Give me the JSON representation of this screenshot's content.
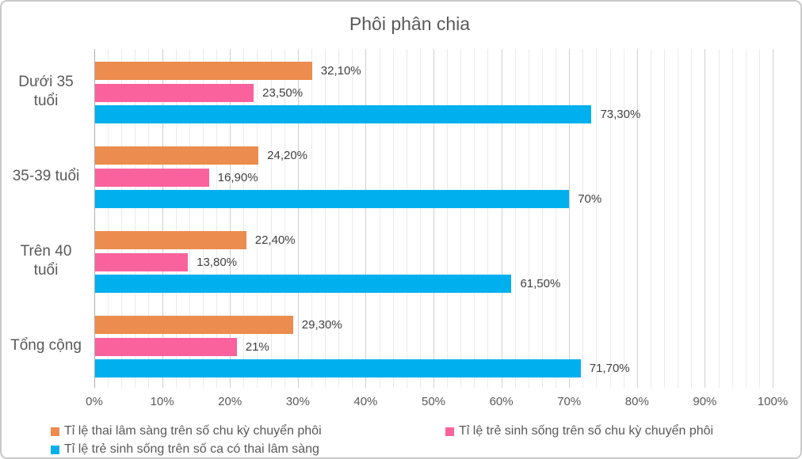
{
  "chart_data": {
    "type": "bar",
    "orientation": "horizontal",
    "title": "Phôi phân chia",
    "categories": [
      "Dưới 35\ntuổi",
      "35-39 tuổi",
      "Trên 40\ntuổi",
      "Tổng cộng"
    ],
    "series": [
      {
        "name": "Tỉ lệ thai lâm sàng trên số chu kỳ chuyển phôi",
        "color": "#ec8c4e",
        "values": [
          32.1,
          24.2,
          22.4,
          29.3
        ],
        "labels": [
          "32,10%",
          "24,20%",
          "22,40%",
          "29,30%"
        ]
      },
      {
        "name": "Tỉ lệ trẻ sinh sống trên số chu kỳ chuyển phôi",
        "color": "#fa629d",
        "values": [
          23.5,
          16.9,
          13.8,
          21.0
        ],
        "labels": [
          "23,50%",
          "16,90%",
          "13,80%",
          "21%"
        ]
      },
      {
        "name": "Tỉ lệ trẻ sinh sống trên số ca có thai lâm sàng",
        "color": "#00b0ee",
        "values": [
          73.3,
          70.0,
          61.5,
          71.7
        ],
        "labels": [
          "73,30%",
          "70%",
          "61,50%",
          "71,70%"
        ]
      }
    ],
    "x_axis": {
      "min": 0,
      "max": 100,
      "major_unit": 10,
      "minor_unit": 2,
      "ticks": [
        "0%",
        "10%",
        "20%",
        "30%",
        "40%",
        "50%",
        "60%",
        "70%",
        "80%",
        "90%",
        "100%"
      ]
    },
    "legend": {
      "position": "bottom"
    },
    "grid": "on",
    "colors": {
      "title_text": "#595959",
      "axis_text": "#595959",
      "data_label_text": "#404040",
      "major_gridline": "#d0d0d0",
      "minor_gridline": "#ebebeb",
      "axis_line": "#adadad",
      "chart_border": "#c9c9c9"
    }
  }
}
